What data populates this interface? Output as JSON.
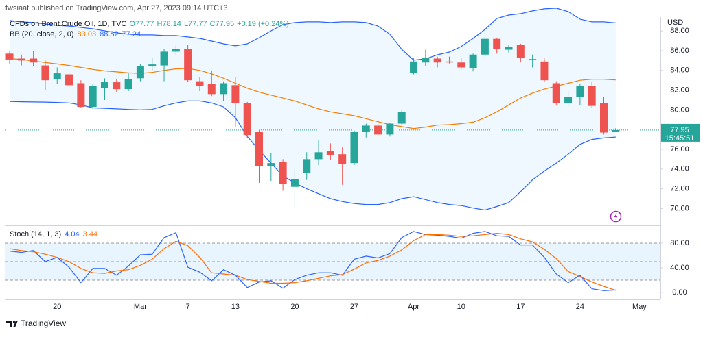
{
  "header": "twsiaat published on TradingView.com, Apr 27, 2023 09:14 UTC+3",
  "footer": "TradingView",
  "chart_data": [
    {
      "type": "candlestick",
      "title": "CFDs on Brent Crude Oil, 1D, TVC",
      "ohlc_labels": [
        "O77.77",
        "H78.14",
        "L77.77",
        "C77.95"
      ],
      "change_label": "+0.19 (+0.24%)",
      "currency": "USD",
      "last_price_label": "77.95",
      "countdown": "15:45:51",
      "up_color": "#26a69a",
      "down_color": "#ef5350",
      "categories": [
        null,
        null,
        null,
        null,
        "20",
        null,
        null,
        null,
        null,
        null,
        null,
        "Mar",
        null,
        null,
        null,
        "7",
        null,
        null,
        null,
        "13",
        null,
        null,
        null,
        null,
        "20",
        null,
        null,
        null,
        null,
        "27",
        null,
        null,
        null,
        null,
        "Apr",
        null,
        null,
        null,
        "10",
        null,
        null,
        null,
        null,
        "17",
        null,
        null,
        null,
        null,
        "24",
        null,
        null,
        null,
        null,
        "May"
      ],
      "open": [
        85.7,
        85.2,
        85.2,
        84.5,
        83.1,
        83.6,
        82.7,
        80.3,
        82.2,
        82.8,
        82.1,
        83.2,
        84.4,
        84.5,
        85.9,
        86.2,
        82.9,
        82.6,
        81.6,
        82.5,
        80.7,
        77.8,
        74.3,
        74.7,
        72.2,
        73.6,
        75.0,
        75.8,
        75.5,
        74.6,
        77.8,
        78.4,
        77.5,
        78.6,
        83.7,
        84.8,
        85.2,
        84.9,
        84.8,
        84.2,
        85.6,
        87.2,
        86.1,
        86.6,
        85.05,
        84.9,
        82.7,
        80.7,
        81.3,
        82.4,
        80.7,
        77.77,
        null,
        null
      ],
      "high": [
        86.0,
        85.6,
        86.0,
        85.0,
        84.3,
        83.9,
        83.0,
        82.6,
        83.2,
        83.1,
        83.7,
        84.6,
        85.3,
        86.2,
        86.5,
        86.6,
        83.3,
        84.0,
        82.9,
        83.3,
        80.8,
        77.9,
        75.6,
        75.0,
        74.0,
        75.7,
        76.9,
        76.6,
        76.2,
        77.9,
        78.6,
        79.0,
        78.7,
        80.0,
        85.3,
        86.1,
        85.4,
        85.4,
        85.3,
        85.7,
        87.4,
        87.3,
        86.6,
        86.7,
        85.6,
        85.2,
        82.9,
        81.9,
        82.6,
        82.8,
        81.3,
        78.14,
        null,
        null
      ],
      "low": [
        84.6,
        84.5,
        84.4,
        82.0,
        82.6,
        82.3,
        80.2,
        80.1,
        81.0,
        81.8,
        81.9,
        82.9,
        84.0,
        82.9,
        85.6,
        82.8,
        81.9,
        81.4,
        80.9,
        78.3,
        77.1,
        72.6,
        72.8,
        71.8,
        70.1,
        72.9,
        74.4,
        74.9,
        72.4,
        74.4,
        77.2,
        77.3,
        77.3,
        78.4,
        83.6,
        84.4,
        84.3,
        84.7,
        84.1,
        83.9,
        85.4,
        85.7,
        85.8,
        84.8,
        84.3,
        82.8,
        80.5,
        80.3,
        80.5,
        80.2,
        77.5,
        77.77,
        null,
        null
      ],
      "close": [
        85.1,
        85.0,
        84.8,
        83.0,
        83.7,
        82.5,
        80.3,
        82.4,
        82.8,
        82.1,
        83.1,
        84.4,
        84.6,
        85.9,
        86.2,
        83.0,
        82.4,
        81.6,
        82.7,
        80.7,
        77.45,
        74.3,
        74.6,
        72.5,
        73.0,
        75.0,
        75.7,
        75.4,
        74.5,
        77.8,
        78.4,
        77.5,
        78.6,
        79.8,
        84.9,
        85.3,
        84.8,
        84.8,
        84.3,
        85.6,
        87.2,
        86.2,
        86.4,
        85.3,
        85.15,
        83.0,
        80.7,
        81.3,
        82.4,
        80.4,
        77.7,
        77.95,
        null,
        null
      ],
      "bands_label": "BB (20, close, 2, 0)",
      "series": [
        {
          "color": "#f57c00",
          "value_label": "83.03",
          "values": [
            85.2,
            85.1,
            84.95,
            84.8,
            84.65,
            84.5,
            84.3,
            84.1,
            83.95,
            83.85,
            83.75,
            83.7,
            83.8,
            84.0,
            84.15,
            84.2,
            84.0,
            83.65,
            83.2,
            82.7,
            82.2,
            81.8,
            81.5,
            81.2,
            80.9,
            80.5,
            80.1,
            79.8,
            79.6,
            79.4,
            79.1,
            78.8,
            78.5,
            78.3,
            78.1,
            78.25,
            78.45,
            78.5,
            78.6,
            78.75,
            79.2,
            79.8,
            80.5,
            81.2,
            81.7,
            82.1,
            82.4,
            82.7,
            83.0,
            83.1,
            83.1,
            83.03,
            null,
            null
          ]
        },
        {
          "color": "#2962ff",
          "value_label": "88.82",
          "values": [
            89.06,
            88.92,
            88.85,
            88.71,
            88.57,
            88.5,
            88.36,
            88.22,
            88.01,
            87.81,
            87.67,
            87.6,
            87.6,
            87.53,
            87.53,
            87.39,
            87.25,
            86.97,
            86.69,
            86.49,
            86.69,
            87.32,
            88.01,
            88.64,
            88.85,
            88.92,
            88.92,
            88.85,
            88.92,
            88.92,
            88.85,
            88.5,
            87.67,
            86.14,
            85.03,
            85.17,
            85.58,
            85.86,
            86.42,
            87.25,
            88.15,
            89.26,
            89.61,
            89.75,
            90.03,
            90.24,
            90.31,
            89.96,
            89.19,
            88.92,
            88.92,
            88.82,
            null,
            null
          ]
        },
        {
          "color": "#2962ff",
          "value_label": "77.24",
          "values": [
            80.85,
            80.82,
            80.8,
            80.78,
            80.75,
            80.7,
            80.5,
            80.2,
            80.15,
            80.1,
            80.05,
            80.0,
            80.05,
            80.4,
            80.7,
            80.9,
            80.9,
            80.7,
            80.3,
            79.2,
            77.3,
            75.9,
            74.6,
            73.3,
            72.6,
            72.0,
            71.5,
            71.0,
            70.7,
            70.5,
            70.4,
            70.4,
            70.6,
            71.0,
            71.2,
            70.9,
            70.6,
            70.4,
            70.3,
            70.05,
            69.85,
            70.2,
            70.6,
            71.7,
            72.9,
            73.8,
            74.6,
            75.5,
            76.5,
            77.0,
            77.15,
            77.24,
            null,
            null
          ]
        }
      ],
      "ylim": [
        68.57,
        89.4
      ],
      "yticks": [
        {
          "value": 70,
          "label": "70.00"
        },
        {
          "value": 72,
          "label": "72.00"
        },
        {
          "value": 74,
          "label": "74.00"
        },
        {
          "value": 76,
          "label": "76.00"
        },
        {
          "value": 80,
          "label": "80.00"
        },
        {
          "value": 82,
          "label": "82.00"
        },
        {
          "value": 84,
          "label": "84.00"
        },
        {
          "value": 86,
          "label": "86.00"
        },
        {
          "value": 88,
          "label": "88.00"
        }
      ]
    },
    {
      "type": "line",
      "title": "Stoch (14, 1, 3)",
      "series": [
        {
          "color": "#2962ff",
          "value_label": "4.04",
          "values": [
            67,
            65,
            68,
            50,
            57,
            41,
            16,
            39,
            39,
            28,
            43,
            61,
            62,
            89,
            97,
            41,
            33,
            19,
            37,
            28,
            8,
            17,
            19,
            7,
            21,
            28,
            32,
            32,
            28,
            54,
            59,
            56,
            63,
            89,
            99,
            94,
            93,
            91,
            88,
            96,
            99,
            92,
            91,
            77,
            77,
            57,
            30,
            16,
            28,
            6,
            3,
            4.04,
            null,
            null
          ]
        },
        {
          "color": "#ff6d00",
          "value_label": "3.44",
          "values": [
            71,
            68,
            66,
            62,
            57,
            50,
            39,
            32,
            31,
            35,
            37,
            44,
            54,
            71,
            83,
            76,
            57,
            32,
            30,
            28,
            21,
            18,
            15,
            15,
            16,
            19,
            23,
            27,
            29,
            38,
            48,
            52,
            59,
            69,
            84,
            94,
            94,
            93,
            91,
            92,
            94,
            96,
            94,
            87,
            82,
            70,
            55,
            34,
            26,
            17,
            10,
            3.44,
            null,
            null
          ]
        }
      ],
      "levels": [
        80,
        50,
        20
      ],
      "ylim": [
        -11.1,
        104.4
      ],
      "yticks": [
        {
          "value": 0,
          "label": "0.00"
        },
        {
          "value": 40,
          "label": "40.00"
        },
        {
          "value": 80,
          "label": "80.00"
        }
      ]
    }
  ]
}
